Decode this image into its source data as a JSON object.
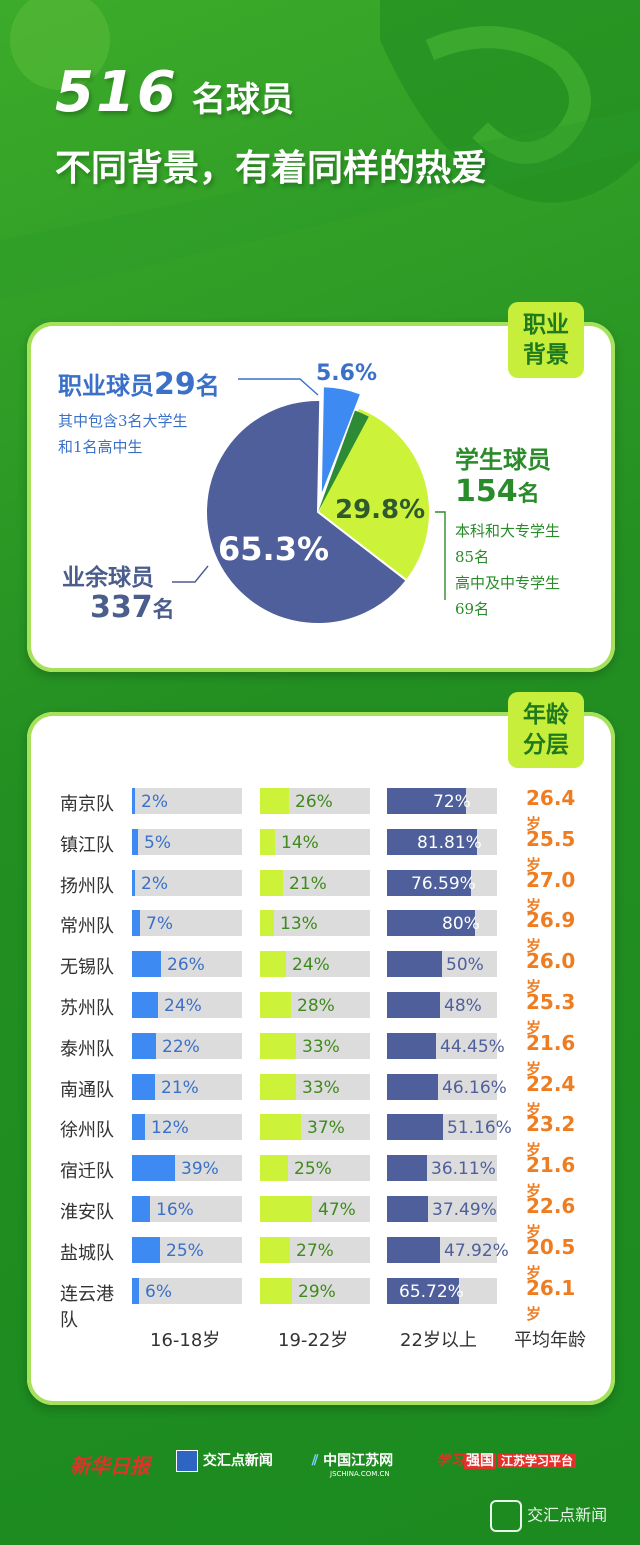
{
  "title": {
    "number": "516",
    "line1_suffix": "名球员",
    "line2": "不同背景，有着同样的热爱"
  },
  "section1": {
    "badge": "职业背景",
    "pro": {
      "label": "职业球员",
      "count": "29",
      "unit": "名",
      "note1": "其中包含3名大学生",
      "note2": "和1名高中生"
    },
    "amateur": {
      "label": "业余球员",
      "count": "337",
      "unit": "名"
    },
    "student": {
      "label": "学生球员",
      "count": "154",
      "unit": "名",
      "note1": "本科和大专学生",
      "note2": "85名",
      "note3": "高中及中专学生",
      "note4": "69名"
    }
  },
  "section2": {
    "badge": "年龄分层"
  },
  "columns": [
    "16-18岁",
    "19-22岁",
    "22岁以上",
    "平均年龄"
  ],
  "age_unit": "岁",
  "colors": {
    "pro": "#3d8bf2",
    "student": "#cdf23a",
    "amateur": "#4e5f9b",
    "accent": "#ee7d22",
    "dark_green": "#2e8b35"
  },
  "footer": {
    "logo1": "新华日报",
    "logo2": "交汇点新闻",
    "logo3": "中国江苏网",
    "logo3_sub": "JSCHINA.COM.CN",
    "logo4a": "学习",
    "logo4b": "强国",
    "logo4c": "江苏学习平台",
    "watermark": "交汇点新闻"
  },
  "chart_data": [
    {
      "type": "pie",
      "slices": [
        {
          "name": "职业球员",
          "value": 5.6,
          "label": "5.6%",
          "color": "#3d8bf2"
        },
        {
          "name": "学生球员",
          "value": 29.8,
          "label": "29.8%",
          "color": "#cdf23a"
        },
        {
          "name": "业余球员",
          "value": 65.3,
          "label": "65.3%",
          "color": "#4e5f9b"
        }
      ]
    },
    {
      "type": "bar",
      "categories": [
        "南京队",
        "镇江队",
        "扬州队",
        "常州队",
        "无锡队",
        "苏州队",
        "泰州队",
        "南通队",
        "徐州队",
        "宿迁队",
        "淮安队",
        "盐城队",
        "连云港队"
      ],
      "series": [
        {
          "name": "16-18岁",
          "values": [
            2,
            5,
            2,
            7,
            26,
            24,
            22,
            21,
            12,
            39,
            16,
            25,
            6
          ],
          "labels": [
            "2%",
            "5%",
            "2%",
            "7%",
            "26%",
            "24%",
            "22%",
            "21%",
            "12%",
            "39%",
            "16%",
            "25%",
            "6%"
          ]
        },
        {
          "name": "19-22岁",
          "values": [
            26,
            14,
            21,
            13,
            24,
            28,
            33,
            33,
            37,
            25,
            47,
            27,
            29
          ],
          "labels": [
            "26%",
            "14%",
            "21%",
            "13%",
            "24%",
            "28%",
            "33%",
            "33%",
            "37%",
            "25%",
            "47%",
            "27%",
            "29%"
          ]
        },
        {
          "name": "22岁以上",
          "values": [
            72,
            81.81,
            76.59,
            80,
            50,
            48,
            44.45,
            46.16,
            51.16,
            36.11,
            37.49,
            47.92,
            65.72
          ],
          "labels": [
            "72%",
            "81.81%",
            "76.59%",
            "80%",
            "50%",
            "48%",
            "44.45%",
            "46.16%",
            "51.16%",
            "36.11%",
            "37.49%",
            "47.92%",
            "65.72%"
          ]
        }
      ],
      "average_age": [
        "26.4",
        "25.5",
        "27.0",
        "26.9",
        "26.0",
        "25.3",
        "21.6",
        "22.4",
        "23.2",
        "21.6",
        "22.6",
        "20.5",
        "26.1"
      ]
    }
  ]
}
